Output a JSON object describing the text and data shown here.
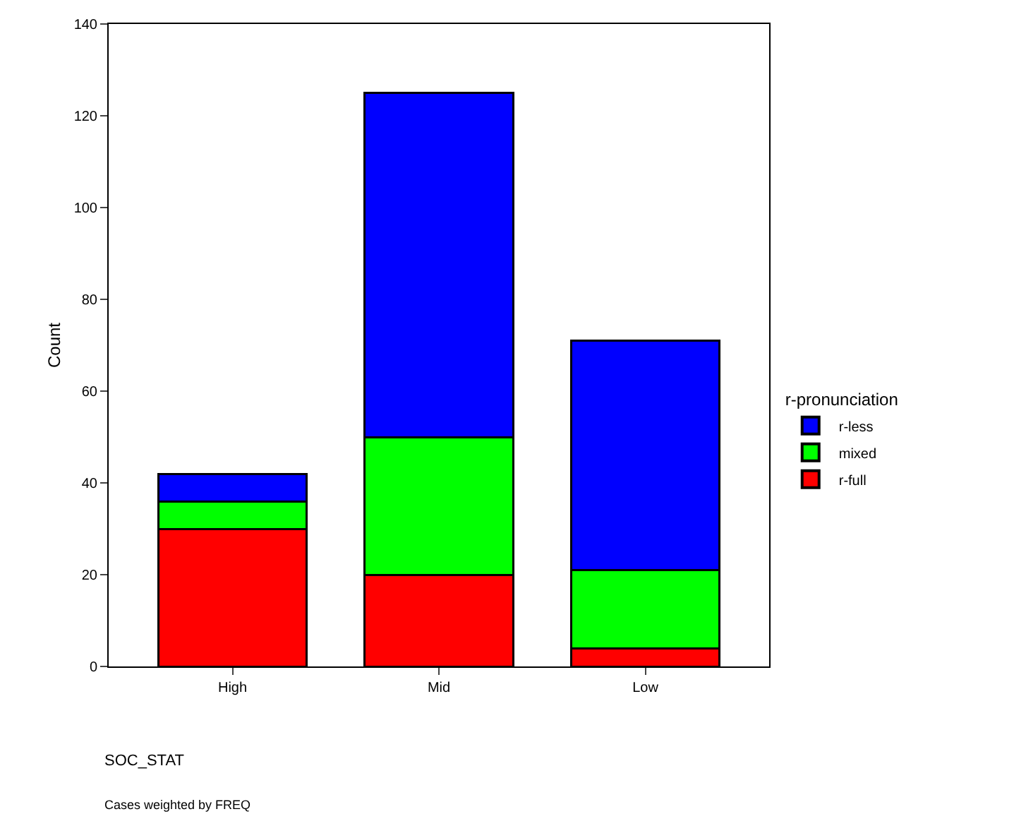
{
  "chart_data": {
    "type": "bar",
    "stacked": true,
    "xlabel": "SOC_STAT",
    "ylabel": "Count",
    "legend_title": "r-pronunciation",
    "categories": [
      "High",
      "Mid",
      "Low"
    ],
    "series": [
      {
        "name": "r-full",
        "color": "#ff0000",
        "values": [
          30,
          20,
          4
        ]
      },
      {
        "name": "mixed",
        "color": "#00ff00",
        "values": [
          6,
          30,
          17
        ]
      },
      {
        "name": "r-less",
        "color": "#0000ff",
        "values": [
          6,
          75,
          50
        ]
      }
    ],
    "ylim": [
      0,
      140
    ],
    "yticks": [
      0,
      20,
      40,
      60,
      80,
      100,
      120,
      140
    ],
    "legend": "right",
    "annotations": [
      "Cases weighted by FREQ"
    ]
  }
}
